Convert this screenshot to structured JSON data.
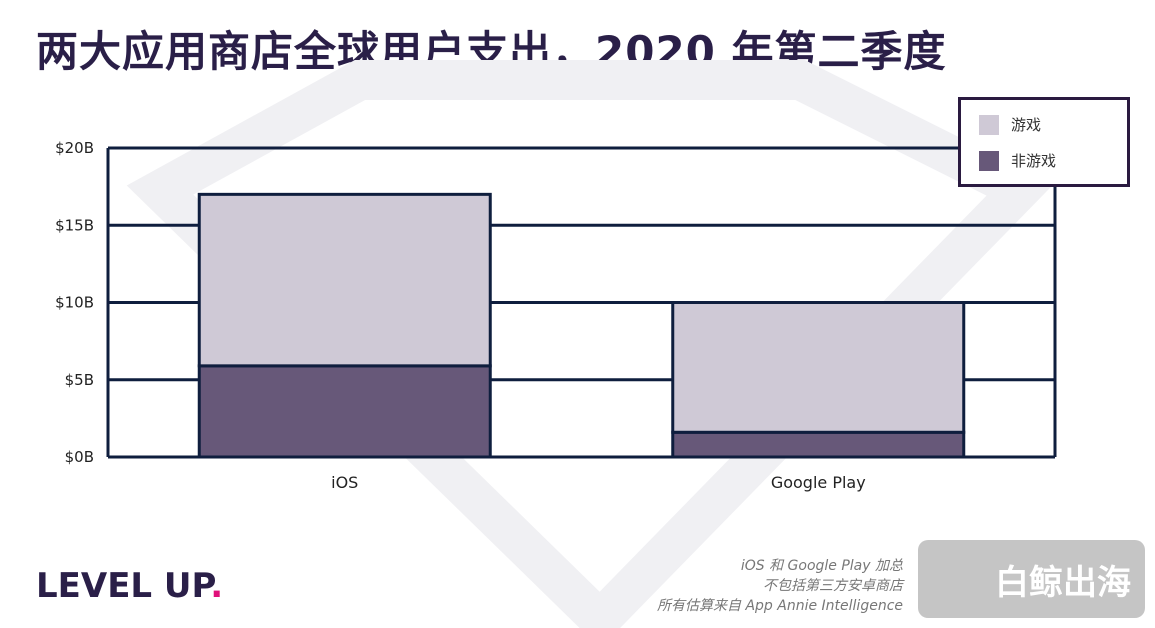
{
  "title": "两大应用商店全球用户支出，2020 年第二季度",
  "chart_data": {
    "type": "bar",
    "stacked": true,
    "title": "两大应用商店全球用户支出，2020 年第二季度",
    "categories": [
      "iOS",
      "Google Play"
    ],
    "series": [
      {
        "name": "非游戏",
        "values": [
          5.9,
          1.6
        ],
        "color": "#675879"
      },
      {
        "name": "游戏",
        "values": [
          11.1,
          8.4
        ],
        "color": "#cfc9d6"
      }
    ],
    "ylim": [
      0,
      20
    ],
    "yticks": [
      0,
      5,
      10,
      15,
      20
    ],
    "ytick_labels": [
      "$0B",
      "$5B",
      "$10B",
      "$15B",
      "$20B"
    ],
    "grid": true,
    "legend_placement": "top-right",
    "legend": [
      "游戏",
      "非游戏"
    ]
  },
  "logo": {
    "text": "LEVEL UP",
    "dot": "."
  },
  "footnotes": [
    "iOS 和 Google Play 加总",
    "不包括第三方安卓商店",
    "所有估算来自 App Annie Intelligence"
  ],
  "watermark": "白鲸出海"
}
